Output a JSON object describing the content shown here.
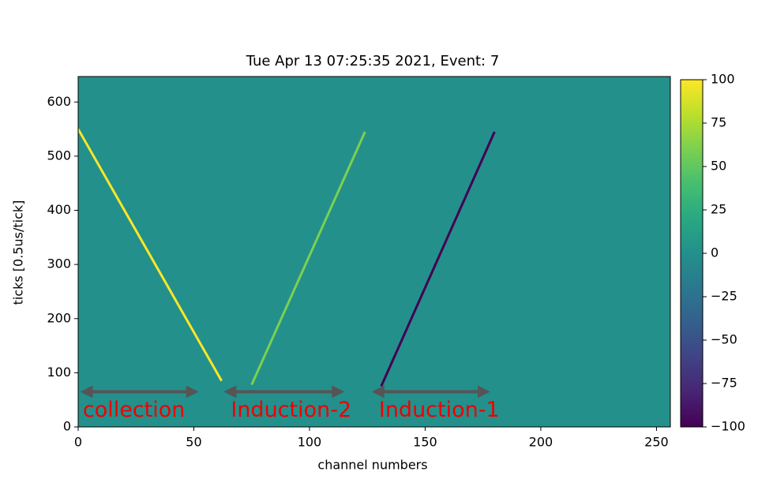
{
  "chart_data": {
    "type": "heatmap",
    "title": "Tue Apr 13 07:25:35 2021, Event: 7",
    "xlabel": "channel numbers",
    "ylabel": "ticks [0.5us/tick]",
    "xlim": [
      0,
      256
    ],
    "ylim": [
      0,
      647
    ],
    "xticks": [
      0,
      50,
      100,
      150,
      200,
      250
    ],
    "yticks": [
      0,
      100,
      200,
      300,
      400,
      500,
      600
    ],
    "background_value": 0,
    "colormap": "viridis",
    "clim": [
      -100,
      100
    ],
    "cticks": [
      {
        "value": -100,
        "label": "−100"
      },
      {
        "value": -75,
        "label": "−75"
      },
      {
        "value": -50,
        "label": "−50"
      },
      {
        "value": -25,
        "label": "−25"
      },
      0,
      25,
      50,
      75,
      100
    ],
    "tracks": [
      {
        "x": [
          0,
          62
        ],
        "y": [
          550,
          85
        ],
        "value": 100
      },
      {
        "x": [
          75,
          124
        ],
        "y": [
          78,
          545
        ],
        "value": 60
      },
      {
        "x": [
          131,
          180
        ],
        "y": [
          75,
          545
        ],
        "value": -100
      }
    ],
    "annotations": [
      {
        "text": "collection",
        "x": 2,
        "y": 30,
        "x1": 2,
        "x2": 51,
        "arrow_y": 65
      },
      {
        "text": "Induction-2",
        "x": 66,
        "y": 30,
        "x1": 64,
        "x2": 114,
        "arrow_y": 65
      },
      {
        "text": "Induction-1",
        "x": 130,
        "y": 30,
        "x1": 128,
        "x2": 177,
        "arrow_y": 65
      }
    ]
  }
}
